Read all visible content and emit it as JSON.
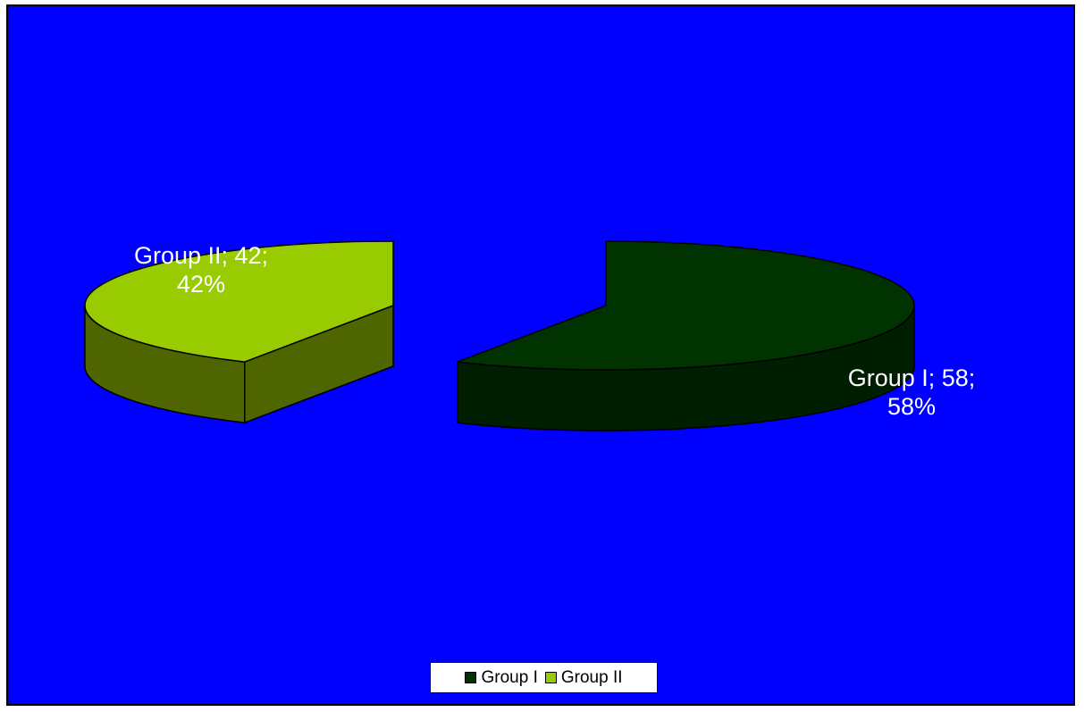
{
  "chart_data": {
    "type": "pie",
    "style": "3d-exploded",
    "categories": [
      "Group I",
      "Group II"
    ],
    "values": [
      58,
      42
    ],
    "percentages": [
      58,
      42
    ],
    "colors": [
      "#003300",
      "#99cc00"
    ],
    "side_colors": [
      "#001f00",
      "#4f6600"
    ],
    "data_labels": [
      {
        "line1": "Group I; 58;",
        "line2": "58%"
      },
      {
        "line1": "Group II; 42;",
        "line2": "42%"
      }
    ],
    "background_color": "#0000ff",
    "legend": {
      "position": "bottom",
      "items": [
        {
          "label": "Group I",
          "color": "#003300"
        },
        {
          "label": "Group II",
          "color": "#99cc00"
        }
      ]
    }
  }
}
